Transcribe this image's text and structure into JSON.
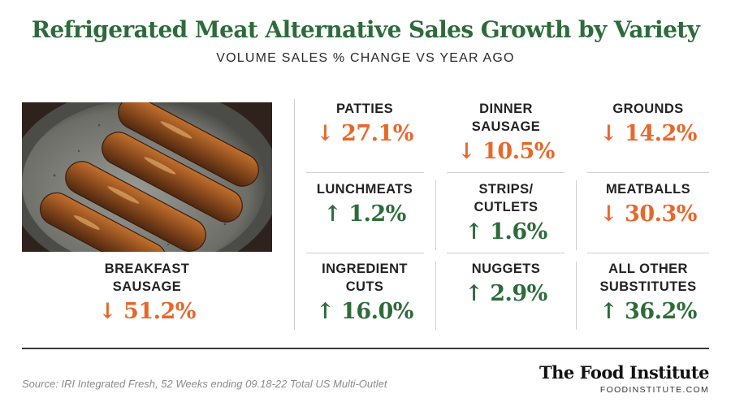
{
  "header": {
    "title": "Refrigerated Meat Alternative Sales Growth by Variety",
    "subtitle": "VOLUME SALES % CHANGE VS YEAR AGO"
  },
  "colors": {
    "title_green": "#2e6b3b",
    "decrease_orange": "#e8672a",
    "increase_green": "#2e6b3b",
    "grid_line": "#cfcfcf",
    "footer_rule": "#3a3a3a",
    "source_gray": "#8a8a8a"
  },
  "image": {
    "icon": "sausages-in-pan-photo"
  },
  "chart_data": {
    "type": "table",
    "title": "Refrigerated Meat Alternative Sales Growth by Variety",
    "subtitle": "VOLUME SALES % CHANGE VS YEAR AGO",
    "unit": "%",
    "categories": [
      {
        "label": "BREAKFAST SAUSAGE",
        "display": "↓ 51.2%",
        "value": -51.2,
        "direction": "down"
      },
      {
        "label": "PATTIES",
        "display": "↓ 27.1%",
        "value": -27.1,
        "direction": "down"
      },
      {
        "label": "DINNER SAUSAGE",
        "display": "↓ 10.5%",
        "value": -10.5,
        "direction": "down"
      },
      {
        "label": "GROUNDS",
        "display": "↓ 14.2%",
        "value": -14.2,
        "direction": "down"
      },
      {
        "label": "LUNCHMEATS",
        "display": "↑ 1.2%",
        "value": 1.2,
        "direction": "up"
      },
      {
        "label": "STRIPS/ CUTLETS",
        "display": "↑ 1.6%",
        "value": 1.6,
        "direction": "up"
      },
      {
        "label": "MEATBALLS",
        "display": "↓ 30.3%",
        "value": -30.3,
        "direction": "down"
      },
      {
        "label": "INGREDIENT CUTS",
        "display": "↑ 16.0%",
        "value": 16.0,
        "direction": "up"
      },
      {
        "label": "NUGGETS",
        "display": "↑ 2.9%",
        "value": 2.9,
        "direction": "up"
      },
      {
        "label": "ALL OTHER SUBSTITUTES",
        "display": "↑ 36.2%",
        "value": 36.2,
        "direction": "up"
      }
    ]
  },
  "footer": {
    "source": "Source: IRI Integrated Fresh, 52 Weeks ending 09.18-22 Total US Multi-Outlet",
    "brand_name": "The Food Institute",
    "brand_url": "FOODINSTITUTE.COM"
  }
}
